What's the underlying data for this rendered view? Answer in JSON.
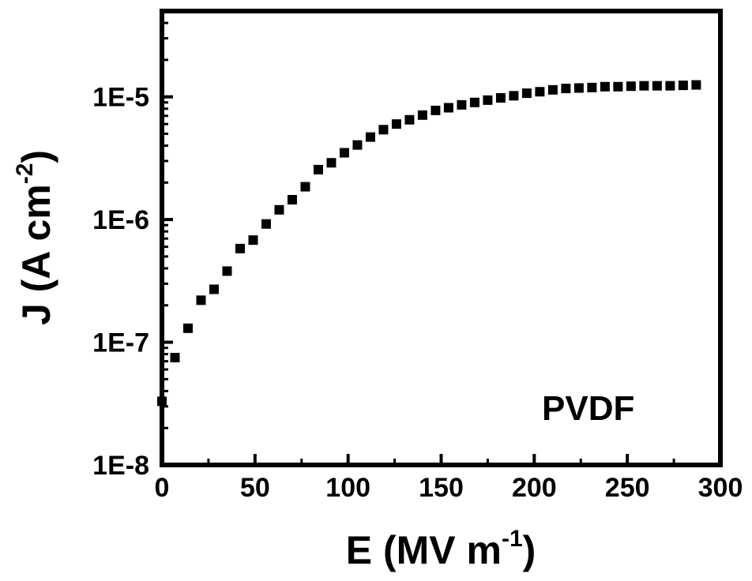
{
  "chart_data": {
    "type": "scatter",
    "xlabel": "E (MV m",
    "xlabel_sup": "-1",
    "xlabel_tail": ")",
    "ylabel": "J (A cm",
    "ylabel_sup": "-2",
    "ylabel_tail": ")",
    "xlim": [
      0,
      300
    ],
    "ylim": [
      1e-08,
      5e-05
    ],
    "y_scale": "log",
    "x_ticks": [
      0,
      50,
      100,
      150,
      200,
      250,
      300
    ],
    "x_tick_labels": [
      "0",
      "50",
      "100",
      "150",
      "200",
      "250",
      "300"
    ],
    "y_ticks": [
      1e-08,
      1e-07,
      1e-06,
      1e-05
    ],
    "y_tick_labels": [
      "1E-8",
      "1E-7",
      "1E-6",
      "1E-5"
    ],
    "grid": false,
    "legend": "none",
    "annotation": "PVDF",
    "marker": "square",
    "marker_color": "#000000",
    "series": [
      {
        "x": [
          0,
          7,
          14,
          21,
          28,
          35,
          42,
          49,
          56,
          63,
          70,
          77,
          84,
          91,
          98,
          105,
          112,
          119,
          126,
          133,
          140,
          147,
          154,
          161,
          168,
          175,
          182,
          189,
          196,
          203,
          210,
          217,
          224,
          231,
          238,
          245,
          252,
          259,
          266,
          273,
          280,
          287
        ],
        "y": [
          3.3e-08,
          7.5e-08,
          1.3e-07,
          2.2e-07,
          2.7e-07,
          3.8e-07,
          5.8e-07,
          6.8e-07,
          9.2e-07,
          1.2e-06,
          1.45e-06,
          1.85e-06,
          2.55e-06,
          2.9e-06,
          3.5e-06,
          4.05e-06,
          4.7e-06,
          5.4e-06,
          6e-06,
          6.5e-06,
          7.1e-06,
          7.75e-06,
          8.15e-06,
          8.6e-06,
          9e-06,
          9.4e-06,
          9.8e-06,
          1.02e-05,
          1.07e-05,
          1.1e-05,
          1.14e-05,
          1.17e-05,
          1.18e-05,
          1.19e-05,
          1.21e-05,
          1.21e-05,
          1.22e-05,
          1.23e-05,
          1.23e-05,
          1.23e-05,
          1.24e-05,
          1.25e-05
        ]
      }
    ]
  }
}
